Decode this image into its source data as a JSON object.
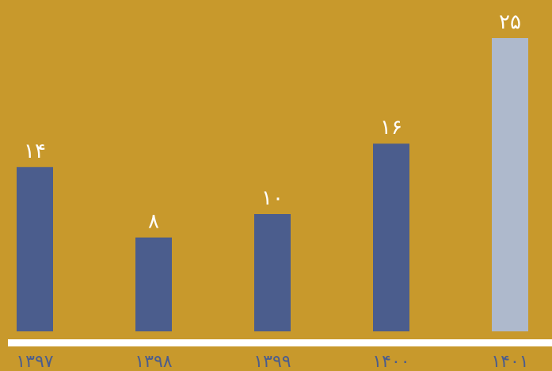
{
  "colors": {
    "background": "#C8992C",
    "bar": "#4B5D8D",
    "bar_highlight": "#AEB9CC",
    "baseline": "#FFFFFF",
    "value_label": "#FFFFFF",
    "category_label": "#4B5D8D"
  },
  "chart_data": {
    "type": "bar",
    "categories": [
      "۱۳۹۷",
      "۱۳۹۸",
      "۱۳۹۹",
      "۱۴۰۰",
      "۱۴۰۱"
    ],
    "values": [
      14,
      8,
      10,
      16,
      25
    ],
    "value_labels": [
      "۱۴",
      "۸",
      "۱۰",
      "۱۶",
      "۲۵"
    ],
    "highlight_index": 4,
    "ylim": [
      0,
      25
    ],
    "grid": false,
    "legend": "none",
    "title": "",
    "xlabel": "",
    "ylabel": ""
  }
}
